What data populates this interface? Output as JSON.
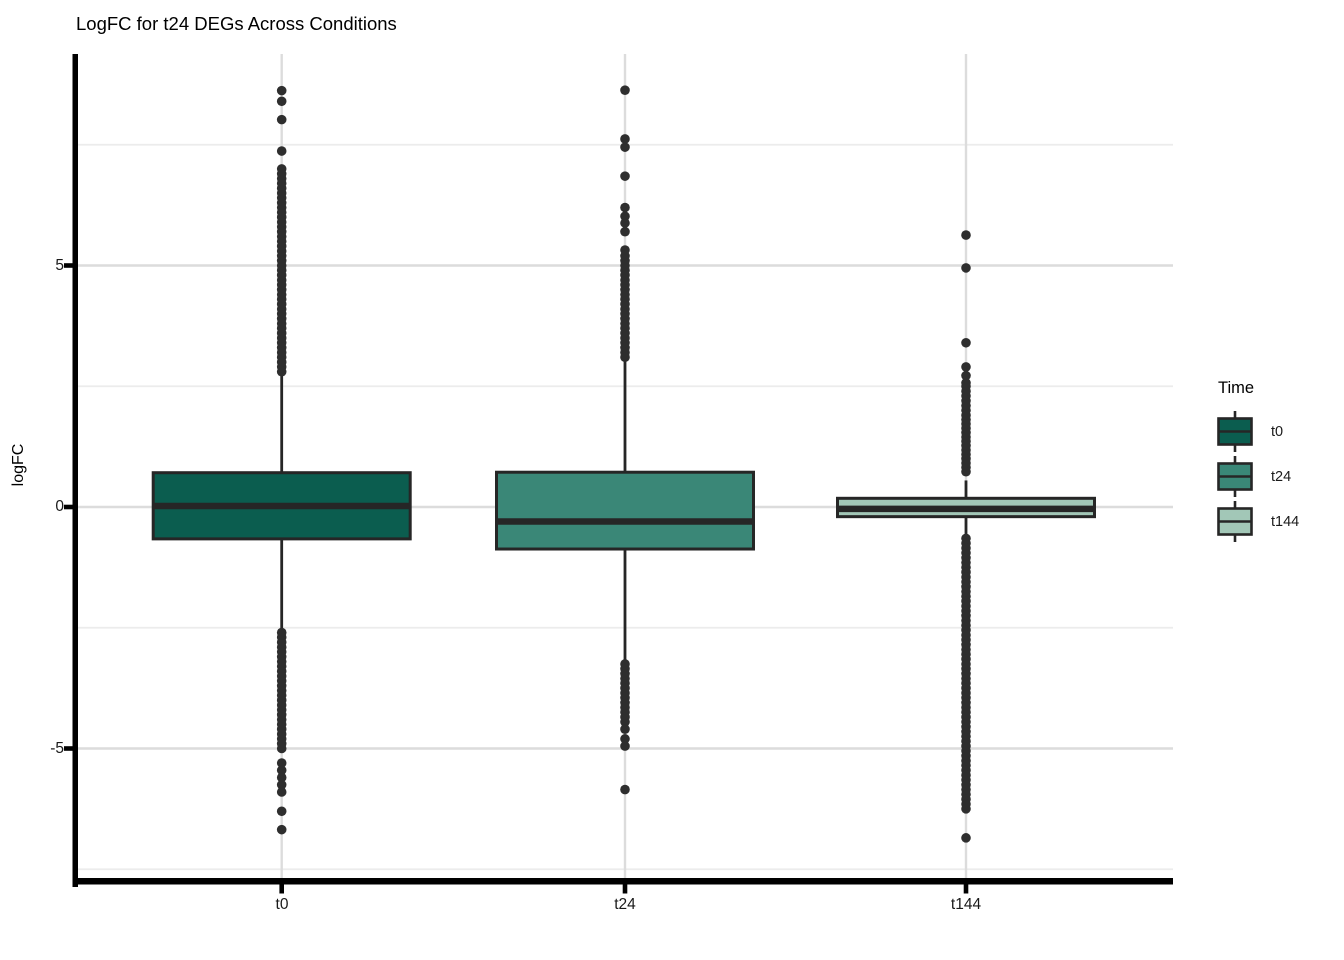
{
  "chart_data": {
    "type": "boxplot",
    "title": "LogFC for t24 DEGs Across Conditions",
    "xlabel": "",
    "ylabel": "logFC",
    "categories": [
      "t0",
      "t24",
      "t144"
    ],
    "y_axis": {
      "ticks": [
        5,
        0,
        -5
      ],
      "tick_labels": [
        "5",
        "0",
        "-5"
      ],
      "minor_gridlines": [
        7.5,
        2.5,
        -2.5,
        -7.5
      ],
      "range": [
        -7.7,
        9.4
      ],
      "grid": "on"
    },
    "legend": {
      "title": "Time",
      "position": "right",
      "entries": [
        {
          "label": "t0"
        },
        {
          "label": "t24"
        },
        {
          "label": "t144"
        }
      ]
    },
    "style": {
      "box_border": "#262626",
      "outlier_color": "#2e2e2e",
      "grid_major": "#dcdcdc",
      "grid_minor": "#ececec",
      "axis_color": "#000000"
    },
    "groups": [
      {
        "label": "t0",
        "color": "#0b5d4f",
        "stats": {
          "median": 0.02,
          "q1": -0.66,
          "q3": 0.71,
          "whisker_low": -2.51,
          "whisker_high": 2.77
        },
        "outliers_high": [
          2.8,
          2.9,
          3.0,
          3.1,
          3.2,
          3.3,
          3.4,
          3.5,
          3.6,
          3.7,
          3.8,
          3.9,
          4.0,
          4.1,
          4.2,
          4.3,
          4.4,
          4.5,
          4.6,
          4.7,
          4.8,
          4.9,
          5.0,
          5.1,
          5.2,
          5.3,
          5.4,
          5.5,
          5.6,
          5.7,
          5.8,
          5.9,
          6.0,
          6.1,
          6.2,
          6.3,
          6.4,
          6.5,
          6.6,
          6.7,
          6.8,
          6.9,
          7.0,
          7.37,
          8.02,
          8.4,
          8.62
        ],
        "outliers_low": [
          -2.6,
          -2.7,
          -2.8,
          -2.9,
          -3.0,
          -3.1,
          -3.2,
          -3.3,
          -3.4,
          -3.5,
          -3.6,
          -3.7,
          -3.8,
          -3.9,
          -4.0,
          -4.1,
          -4.2,
          -4.3,
          -4.4,
          -4.5,
          -4.6,
          -4.7,
          -4.8,
          -4.9,
          -5.0,
          -5.3,
          -5.45,
          -5.6,
          -5.75,
          -5.9,
          -6.3,
          -6.68
        ]
      },
      {
        "label": "t24",
        "color": "#3a8777",
        "stats": {
          "median": -0.3,
          "q1": -0.87,
          "q3": 0.72,
          "whisker_low": -3.2,
          "whisker_high": 3.08
        },
        "outliers_high": [
          3.1,
          3.2,
          3.3,
          3.4,
          3.5,
          3.6,
          3.7,
          3.8,
          3.9,
          4.0,
          4.1,
          4.2,
          4.3,
          4.4,
          4.5,
          4.6,
          4.7,
          4.8,
          4.9,
          5.0,
          5.1,
          5.2,
          5.32,
          5.7,
          5.88,
          6.02,
          6.2,
          6.85,
          7.45,
          7.62,
          8.63
        ],
        "outliers_low": [
          -3.25,
          -3.35,
          -3.45,
          -3.55,
          -3.65,
          -3.75,
          -3.85,
          -3.95,
          -4.05,
          -4.15,
          -4.25,
          -4.35,
          -4.45,
          -4.6,
          -4.8,
          -4.95,
          -5.85
        ]
      },
      {
        "label": "t144",
        "color": "#a2c7b7",
        "stats": {
          "median": -0.04,
          "q1": -0.2,
          "q3": 0.18,
          "whisker_low": -0.6,
          "whisker_high": 0.55
        },
        "outliers_high": [
          0.73,
          0.82,
          0.91,
          1.0,
          1.09,
          1.18,
          1.27,
          1.36,
          1.45,
          1.54,
          1.63,
          1.72,
          1.81,
          1.9,
          2.0,
          2.1,
          2.2,
          2.3,
          2.4,
          2.5,
          2.57,
          2.72,
          2.9,
          3.4,
          4.95,
          5.63
        ],
        "outliers_low": [
          -0.65,
          -0.75,
          -0.85,
          -0.95,
          -1.05,
          -1.15,
          -1.25,
          -1.35,
          -1.45,
          -1.55,
          -1.65,
          -1.75,
          -1.85,
          -1.95,
          -2.05,
          -2.15,
          -2.25,
          -2.35,
          -2.45,
          -2.55,
          -2.65,
          -2.75,
          -2.85,
          -2.95,
          -3.05,
          -3.15,
          -3.25,
          -3.35,
          -3.45,
          -3.55,
          -3.65,
          -3.75,
          -3.85,
          -3.95,
          -4.05,
          -4.15,
          -4.25,
          -4.35,
          -4.45,
          -4.55,
          -4.65,
          -4.75,
          -4.85,
          -4.95,
          -5.05,
          -5.15,
          -5.25,
          -5.35,
          -5.45,
          -5.55,
          -5.65,
          -5.75,
          -5.85,
          -5.95,
          -6.05,
          -6.15,
          -6.25,
          -6.85
        ]
      }
    ]
  }
}
